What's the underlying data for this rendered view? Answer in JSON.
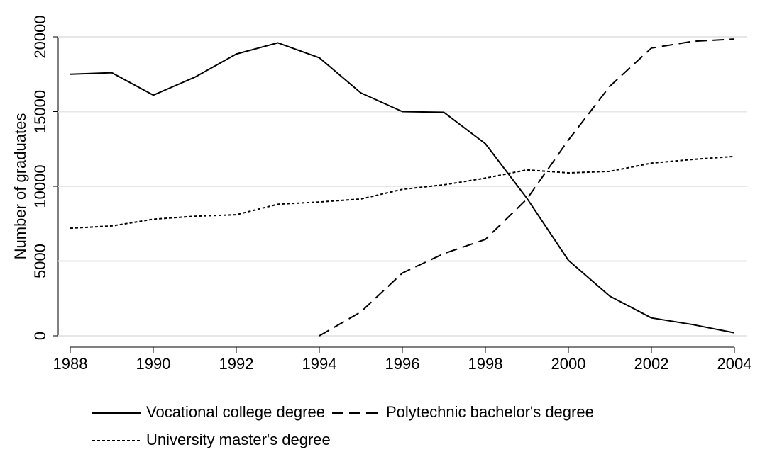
{
  "chart_data": {
    "type": "line",
    "y_label": "Number of graduates",
    "x": [
      1988,
      1989,
      1990,
      1991,
      1992,
      1993,
      1994,
      1995,
      1996,
      1997,
      1998,
      1999,
      2000,
      2001,
      2002,
      2003,
      2004
    ],
    "series": [
      {
        "name": "Vocational college degree",
        "color": "#000000",
        "dash": "none",
        "values": [
          17500,
          17600,
          16100,
          17300,
          18850,
          19600,
          18600,
          16250,
          15000,
          14950,
          12850,
          9200,
          5050,
          2650,
          1200,
          750,
          200
        ]
      },
      {
        "name": "Polytechnic bachelor's degree",
        "color": "#000000",
        "dash": "16,8",
        "values": [
          null,
          null,
          null,
          null,
          null,
          null,
          0,
          1600,
          4200,
          5500,
          6450,
          9150,
          13100,
          16700,
          19250,
          19700,
          19850
        ]
      },
      {
        "name": "University master's degree",
        "color": "#000000",
        "dash": "4,3",
        "values": [
          7200,
          7350,
          7800,
          8000,
          8100,
          8800,
          8950,
          9150,
          9800,
          10100,
          10550,
          11100,
          10900,
          11000,
          11550,
          11800,
          12000
        ]
      }
    ],
    "xlim": [
      1988,
      2004
    ],
    "xticks": [
      1988,
      1990,
      1992,
      1994,
      1996,
      1998,
      2000,
      2002,
      2004
    ],
    "ylim": [
      0,
      20000
    ],
    "yticks": [
      0,
      5000,
      10000,
      15000,
      20000
    ],
    "grid": true,
    "legend": "bottom"
  }
}
